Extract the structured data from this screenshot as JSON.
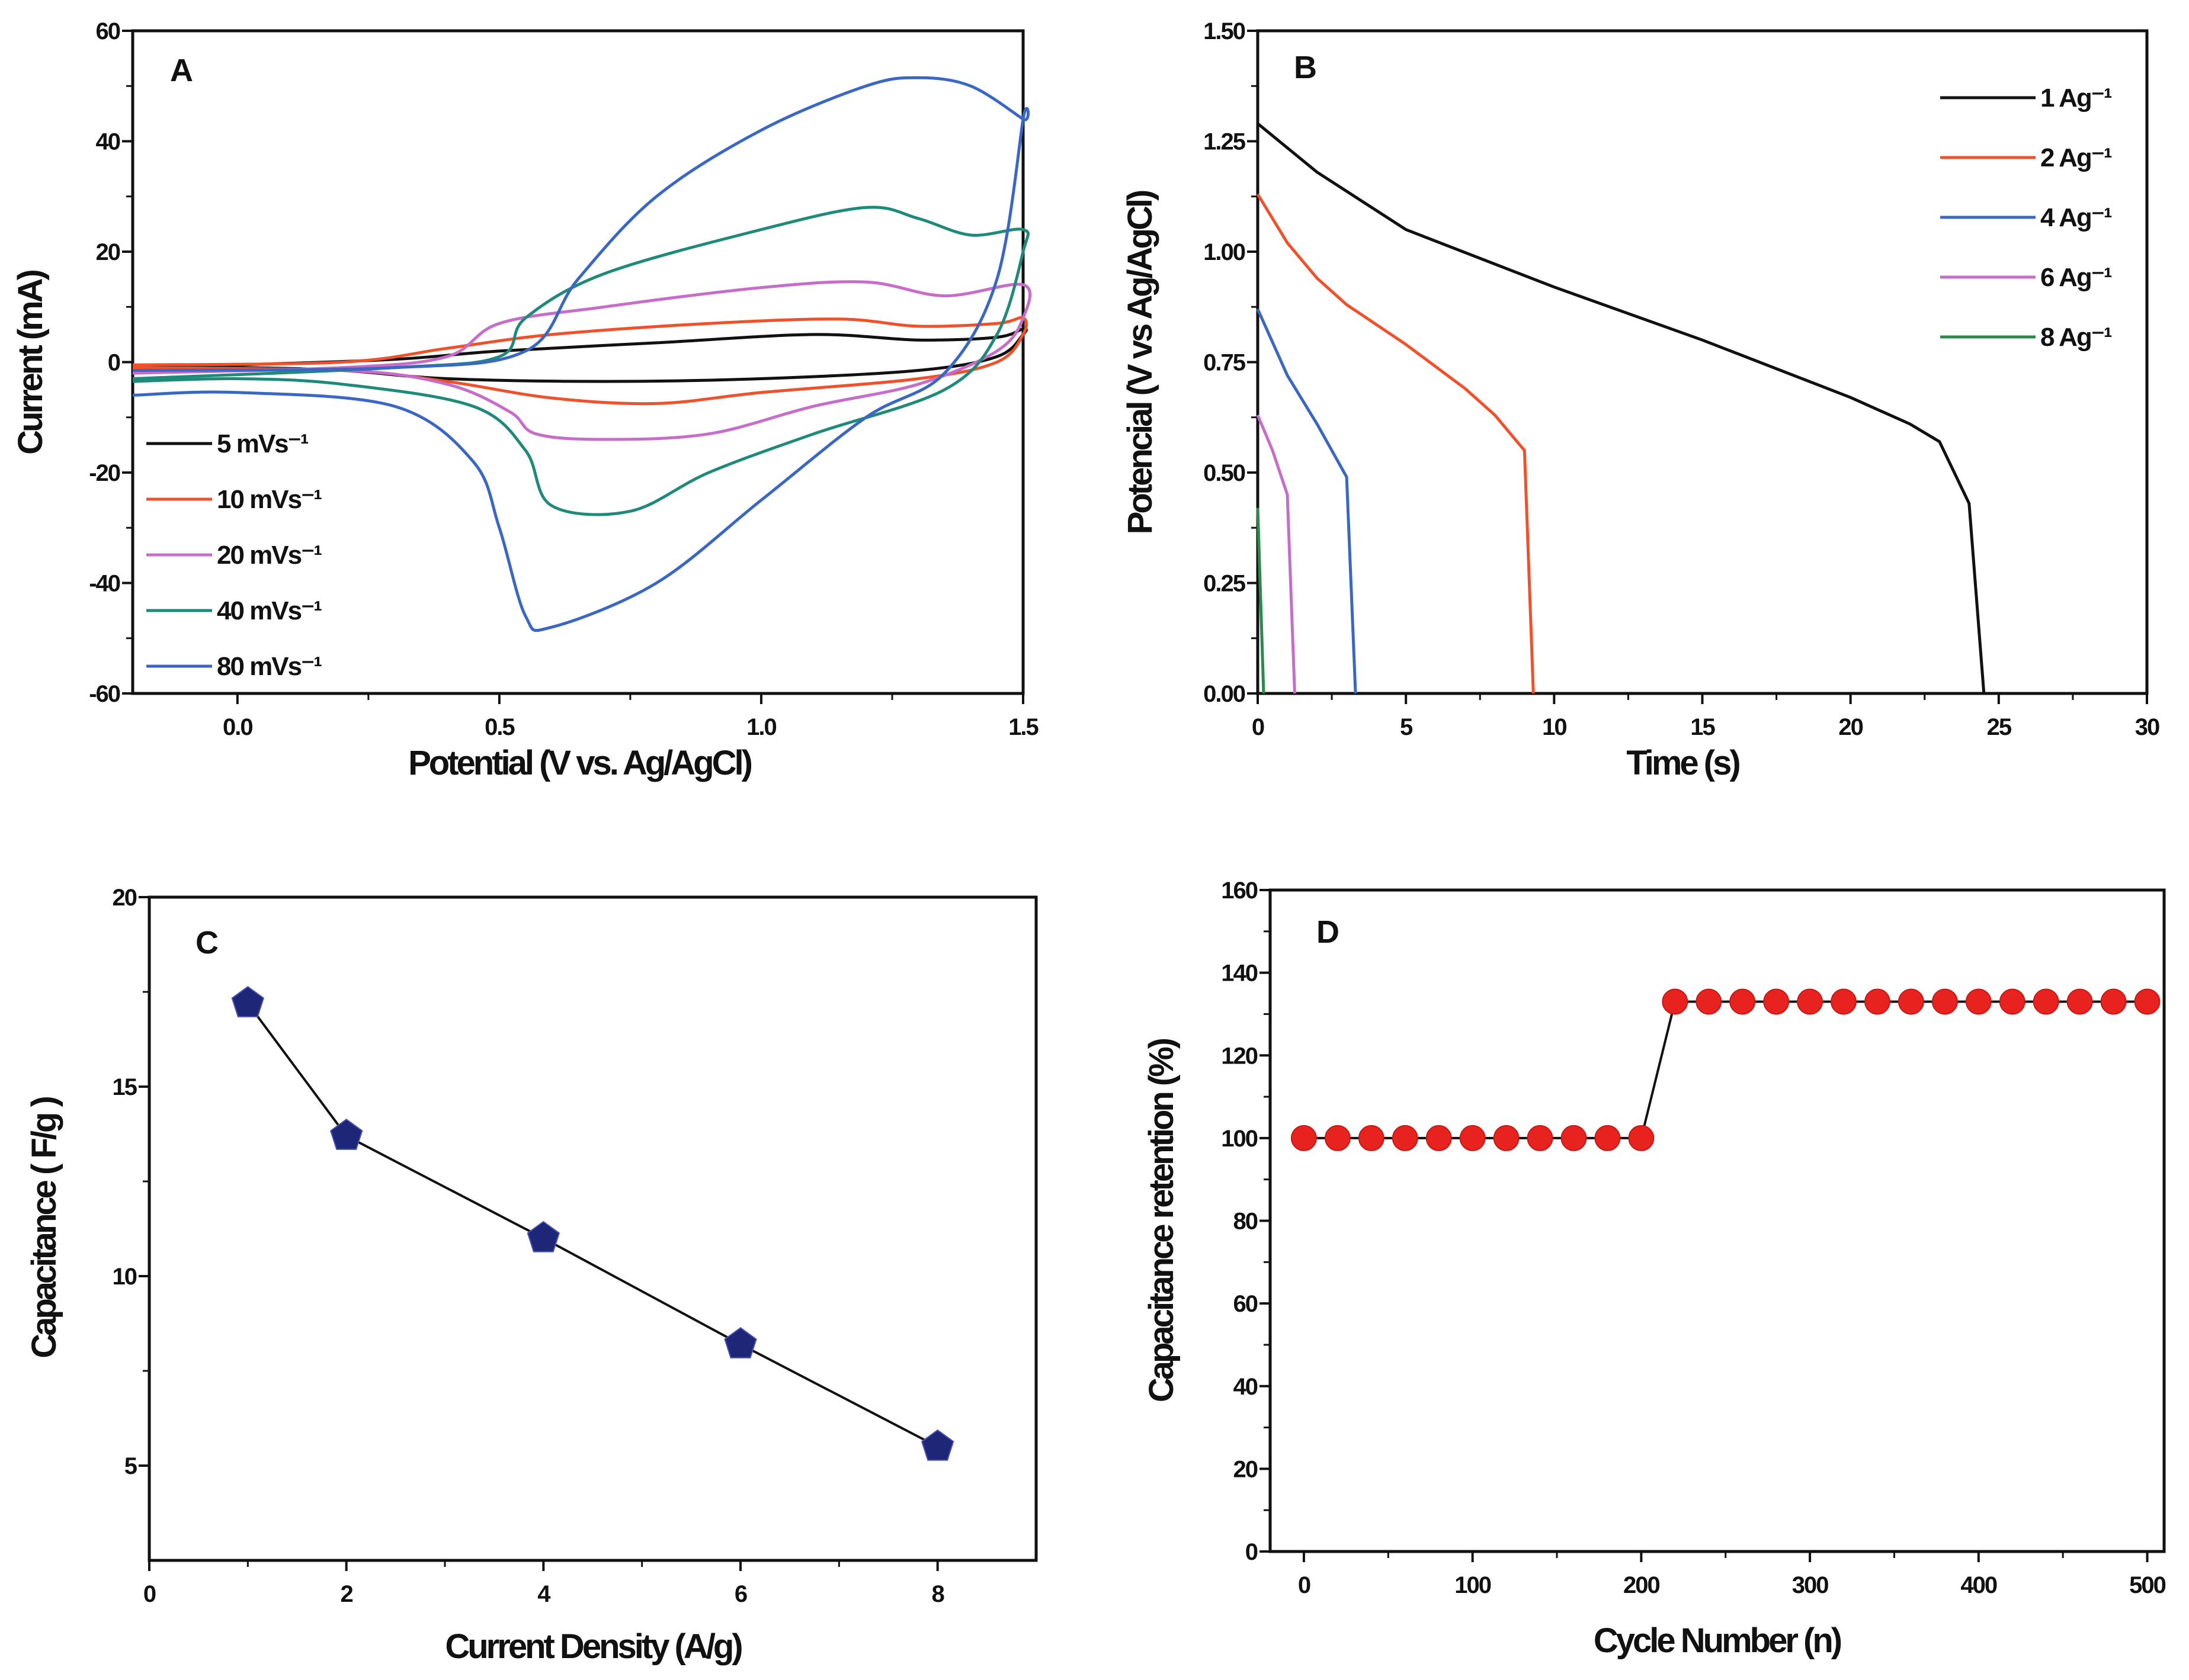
{
  "chart_data": [
    {
      "panel_label": "A",
      "type": "line",
      "xlabel": "Potential (V vs. Ag/AgCl)",
      "ylabel": "Current (mA)",
      "xlim": [
        -0.2,
        1.5
      ],
      "ylim": [
        -60,
        60
      ],
      "xticks": [
        0.0,
        0.5,
        1.0,
        1.5
      ],
      "xtick_labels": [
        "0.0",
        "0.5",
        "1.0",
        "1.5"
      ],
      "yticks": [
        -60,
        -40,
        -20,
        0,
        20,
        40,
        60
      ],
      "ytick_labels": [
        "-60",
        "-40",
        "-20",
        "0",
        "20",
        "40",
        "60"
      ],
      "legend": "bottom-left",
      "series": [
        {
          "name": "5 mVs⁻¹",
          "color": "#111111",
          "x": [
            -0.2,
            0,
            0.3,
            0.5,
            0.8,
            1.1,
            1.3,
            1.45,
            1.5,
            1.5,
            1.45,
            1.3,
            1.0,
            0.7,
            0.4,
            0.2,
            0,
            -0.2
          ],
          "y": [
            -1,
            -0.5,
            0.5,
            2,
            3.5,
            5,
            4,
            4.5,
            6,
            5,
            1,
            -1.5,
            -3,
            -3.5,
            -3,
            -1.5,
            -1,
            -1
          ]
        },
        {
          "name": "10 mVs⁻¹",
          "color": "#f0502a",
          "x": [
            -0.2,
            0.2,
            0.4,
            0.6,
            0.9,
            1.15,
            1.3,
            1.45,
            1.5,
            1.5,
            1.45,
            1.3,
            1.0,
            0.8,
            0.6,
            0.4,
            0.2,
            -0.2
          ],
          "y": [
            -0.5,
            0,
            2.5,
            5,
            7,
            7.8,
            6.5,
            7,
            8,
            5,
            0,
            -3,
            -5.5,
            -7.5,
            -6.5,
            -3.5,
            -1.5,
            -1
          ]
        },
        {
          "name": "20 mVs⁻¹",
          "color": "#c66cc9",
          "x": [
            -0.2,
            0.2,
            0.4,
            0.5,
            0.7,
            1.0,
            1.2,
            1.35,
            1.5,
            1.5,
            1.45,
            1.3,
            1.1,
            0.9,
            0.7,
            0.57,
            0.52,
            0.4,
            0.2,
            -0.2
          ],
          "y": [
            -2,
            -1,
            1,
            7,
            10,
            13.5,
            14.5,
            12,
            14,
            8,
            2,
            -4,
            -8,
            -13,
            -14,
            -13,
            -9,
            -4,
            -1.5,
            -2
          ]
        },
        {
          "name": "40 mVs⁻¹",
          "color": "#1f8a7a",
          "x": [
            -0.2,
            0.3,
            0.5,
            0.55,
            0.7,
            1.0,
            1.2,
            1.3,
            1.4,
            1.5,
            1.5,
            1.45,
            1.35,
            1.1,
            0.9,
            0.75,
            0.6,
            0.55,
            0.45,
            0.2,
            0,
            -0.2
          ],
          "y": [
            -3,
            -1,
            1,
            8,
            16,
            24,
            28,
            26,
            23,
            24,
            20,
            5,
            -5,
            -13,
            -20,
            -27,
            -26,
            -16,
            -8,
            -4,
            -3,
            -3.5
          ]
        },
        {
          "name": "80 mVs⁻¹",
          "color": "#3a66c4",
          "x": [
            -0.2,
            0.3,
            0.55,
            0.65,
            0.8,
            1.0,
            1.2,
            1.3,
            1.4,
            1.5,
            1.5,
            1.45,
            1.35,
            1.2,
            1.0,
            0.8,
            0.6,
            0.55,
            0.5,
            0.45,
            0.3,
            0,
            -0.2
          ],
          "y": [
            -1.5,
            -1,
            2,
            15,
            30,
            42,
            50,
            51.5,
            50,
            44,
            44,
            15,
            -2,
            -10,
            -25,
            -40,
            -48,
            -46,
            -30,
            -18,
            -8,
            -5.5,
            -6
          ]
        }
      ]
    },
    {
      "panel_label": "B",
      "type": "line",
      "xlabel": "Time (s)",
      "ylabel": "Potencial (V vs Ag/AgCl)",
      "xlim": [
        0,
        30
      ],
      "ylim": [
        0,
        1.5
      ],
      "xticks": [
        0,
        5,
        10,
        15,
        20,
        25,
        30
      ],
      "xtick_labels": [
        "0",
        "5",
        "10",
        "15",
        "20",
        "25",
        "30"
      ],
      "yticks": [
        0,
        0.25,
        0.5,
        0.75,
        1.0,
        1.25,
        1.5
      ],
      "ytick_labels": [
        "0.00",
        "0.25",
        "0.50",
        "0.75",
        "1.00",
        "1.25",
        "1.50"
      ],
      "legend": "top-right",
      "series": [
        {
          "name": "1 Ag⁻¹",
          "color": "#111111",
          "x": [
            0,
            2,
            5,
            10,
            15,
            20,
            22,
            23,
            24,
            24.5
          ],
          "y": [
            1.29,
            1.18,
            1.05,
            0.92,
            0.8,
            0.67,
            0.61,
            0.57,
            0.43,
            0
          ]
        },
        {
          "name": "2 Ag⁻¹",
          "color": "#f0502a",
          "x": [
            0,
            1,
            2,
            3,
            5,
            7,
            8,
            9,
            9.3
          ],
          "y": [
            1.13,
            1.02,
            0.94,
            0.88,
            0.79,
            0.69,
            0.63,
            0.55,
            0
          ]
        },
        {
          "name": "4 Ag⁻¹",
          "color": "#3a66c4",
          "x": [
            0,
            1,
            2,
            3,
            3.3
          ],
          "y": [
            0.87,
            0.72,
            0.61,
            0.49,
            0
          ]
        },
        {
          "name": "6 Ag⁻¹",
          "color": "#c66cc9",
          "x": [
            0,
            0.5,
            1,
            1.25
          ],
          "y": [
            0.63,
            0.55,
            0.45,
            0
          ]
        },
        {
          "name": "8 Ag⁻¹",
          "color": "#2a8a4a",
          "x": [
            0,
            0.2
          ],
          "y": [
            0.42,
            0
          ]
        }
      ]
    },
    {
      "panel_label": "C",
      "type": "line",
      "xlabel": "Current Density (A/g)",
      "ylabel": "Capacitance ( F/g )",
      "xlim": [
        0,
        9
      ],
      "ylim": [
        2.5,
        20
      ],
      "xticks": [
        0,
        2,
        4,
        6,
        8
      ],
      "xtick_labels": [
        "0",
        "2",
        "4",
        "6",
        "8"
      ],
      "yticks": [
        5,
        10,
        15,
        20
      ],
      "ytick_labels": [
        "5",
        "10",
        "15",
        "20"
      ],
      "marker": "pentagon",
      "series": [
        {
          "name": "Capacitance",
          "color": "#1e2678",
          "x": [
            1,
            2,
            4,
            6,
            8
          ],
          "y": [
            17.2,
            13.7,
            11.0,
            8.2,
            5.5
          ]
        }
      ]
    },
    {
      "panel_label": "D",
      "type": "line",
      "xlabel": "Cycle Number (n)",
      "ylabel": "Capacitance retention (%)",
      "xlim": [
        -20,
        510
      ],
      "ylim": [
        0,
        160
      ],
      "xticks": [
        0,
        100,
        200,
        300,
        400,
        500
      ],
      "xtick_labels": [
        "0",
        "100",
        "200",
        "300",
        "400",
        "500"
      ],
      "yticks": [
        0,
        20,
        40,
        60,
        80,
        100,
        120,
        140,
        160
      ],
      "ytick_labels": [
        "0",
        "20",
        "40",
        "60",
        "80",
        "100",
        "120",
        "140",
        "160"
      ],
      "marker": "circle",
      "series": [
        {
          "name": "Retention",
          "color": "#e8231f",
          "x": [
            0,
            20,
            40,
            60,
            80,
            100,
            120,
            140,
            160,
            180,
            200,
            220,
            240,
            260,
            280,
            300,
            320,
            340,
            360,
            380,
            400,
            420,
            440,
            460,
            480,
            500
          ],
          "y": [
            100,
            100,
            100,
            100,
            100,
            100,
            100,
            100,
            100,
            100,
            100,
            133,
            133,
            133,
            133,
            133,
            133,
            133,
            133,
            133,
            133,
            133,
            133,
            133,
            133,
            133
          ]
        }
      ]
    }
  ]
}
